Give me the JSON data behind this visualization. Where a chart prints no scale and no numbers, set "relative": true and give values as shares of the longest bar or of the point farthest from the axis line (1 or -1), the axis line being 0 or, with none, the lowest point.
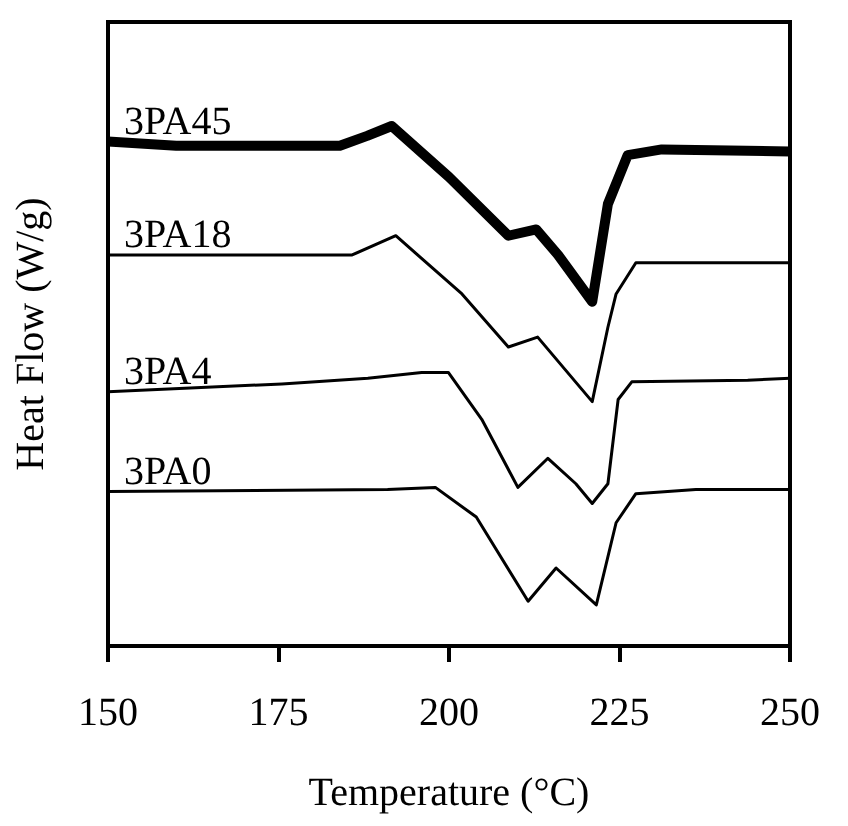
{
  "chart_data": {
    "type": "line",
    "xlabel": "Temperature (°C)",
    "ylabel": "Heat Flow (W/g)",
    "relative": true,
    "xlim": [
      150,
      250
    ],
    "xticks": [
      150,
      175,
      200,
      225,
      250
    ],
    "grid": false,
    "legend": false,
    "marker": "none",
    "line_style": "solid",
    "tick_labels": "x",
    "series": [
      {
        "name": "3PA45",
        "color": "#000000",
        "x": [
          150,
          160,
          184,
          188,
          191.6,
          200,
          208.7,
          212.8,
          216,
          221,
          223.3,
          226.2,
          231.2,
          250
        ],
        "values": [
          0.97,
          0.962,
          0.962,
          0.981,
          1.0,
          0.902,
          0.789,
          0.801,
          0.752,
          0.662,
          0.85,
          0.944,
          0.955,
          0.951
        ]
      },
      {
        "name": "3PA18",
        "color": "#000000",
        "x": [
          150,
          185.8,
          192.2,
          201.9,
          208.7,
          213.0,
          221.0,
          223.3,
          224.5,
          227.4,
          250
        ],
        "values": [
          0.752,
          0.752,
          0.789,
          0.677,
          0.575,
          0.594,
          0.47,
          0.613,
          0.677,
          0.737,
          0.737
        ]
      },
      {
        "name": "3PA4",
        "color": "#000000",
        "x": [
          150,
          175.5,
          188.1,
          196,
          199.9,
          204.8,
          210.1,
          214.5,
          218.6,
          221,
          223.3,
          224.8,
          226.8,
          243.8,
          250
        ],
        "values": [
          0.489,
          0.504,
          0.515,
          0.526,
          0.526,
          0.436,
          0.305,
          0.361,
          0.312,
          0.274,
          0.312,
          0.474,
          0.508,
          0.511,
          0.515
        ]
      },
      {
        "name": "3PA0",
        "color": "#000000",
        "x": [
          150,
          191,
          198,
          204,
          211.6,
          215.7,
          221.6,
          224.5,
          227.4,
          236.2,
          250
        ],
        "values": [
          0.297,
          0.301,
          0.305,
          0.248,
          0.086,
          0.15,
          0.079,
          0.237,
          0.293,
          0.301,
          0.301
        ]
      }
    ]
  }
}
